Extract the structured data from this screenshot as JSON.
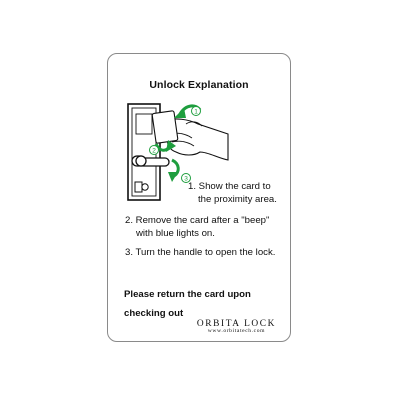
{
  "card": {
    "title": "Unlock Explanation",
    "steps": [
      {
        "line1": "1. Show the card to",
        "line2": "the proximity area."
      },
      {
        "line1": "2. Remove the card after a \"beep\"",
        "line2": "with blue lights on."
      },
      {
        "line1": "3. Turn the handle to open the lock.",
        "line2": ""
      }
    ],
    "notice": {
      "line1": "Please return the card upon",
      "line2": "checking out"
    },
    "brand": {
      "name": "ORBITA LOCK",
      "url": "www.orbitatech.com"
    },
    "markers": [
      "1",
      "2",
      "3"
    ],
    "accent_color": "#1e9e3e"
  }
}
